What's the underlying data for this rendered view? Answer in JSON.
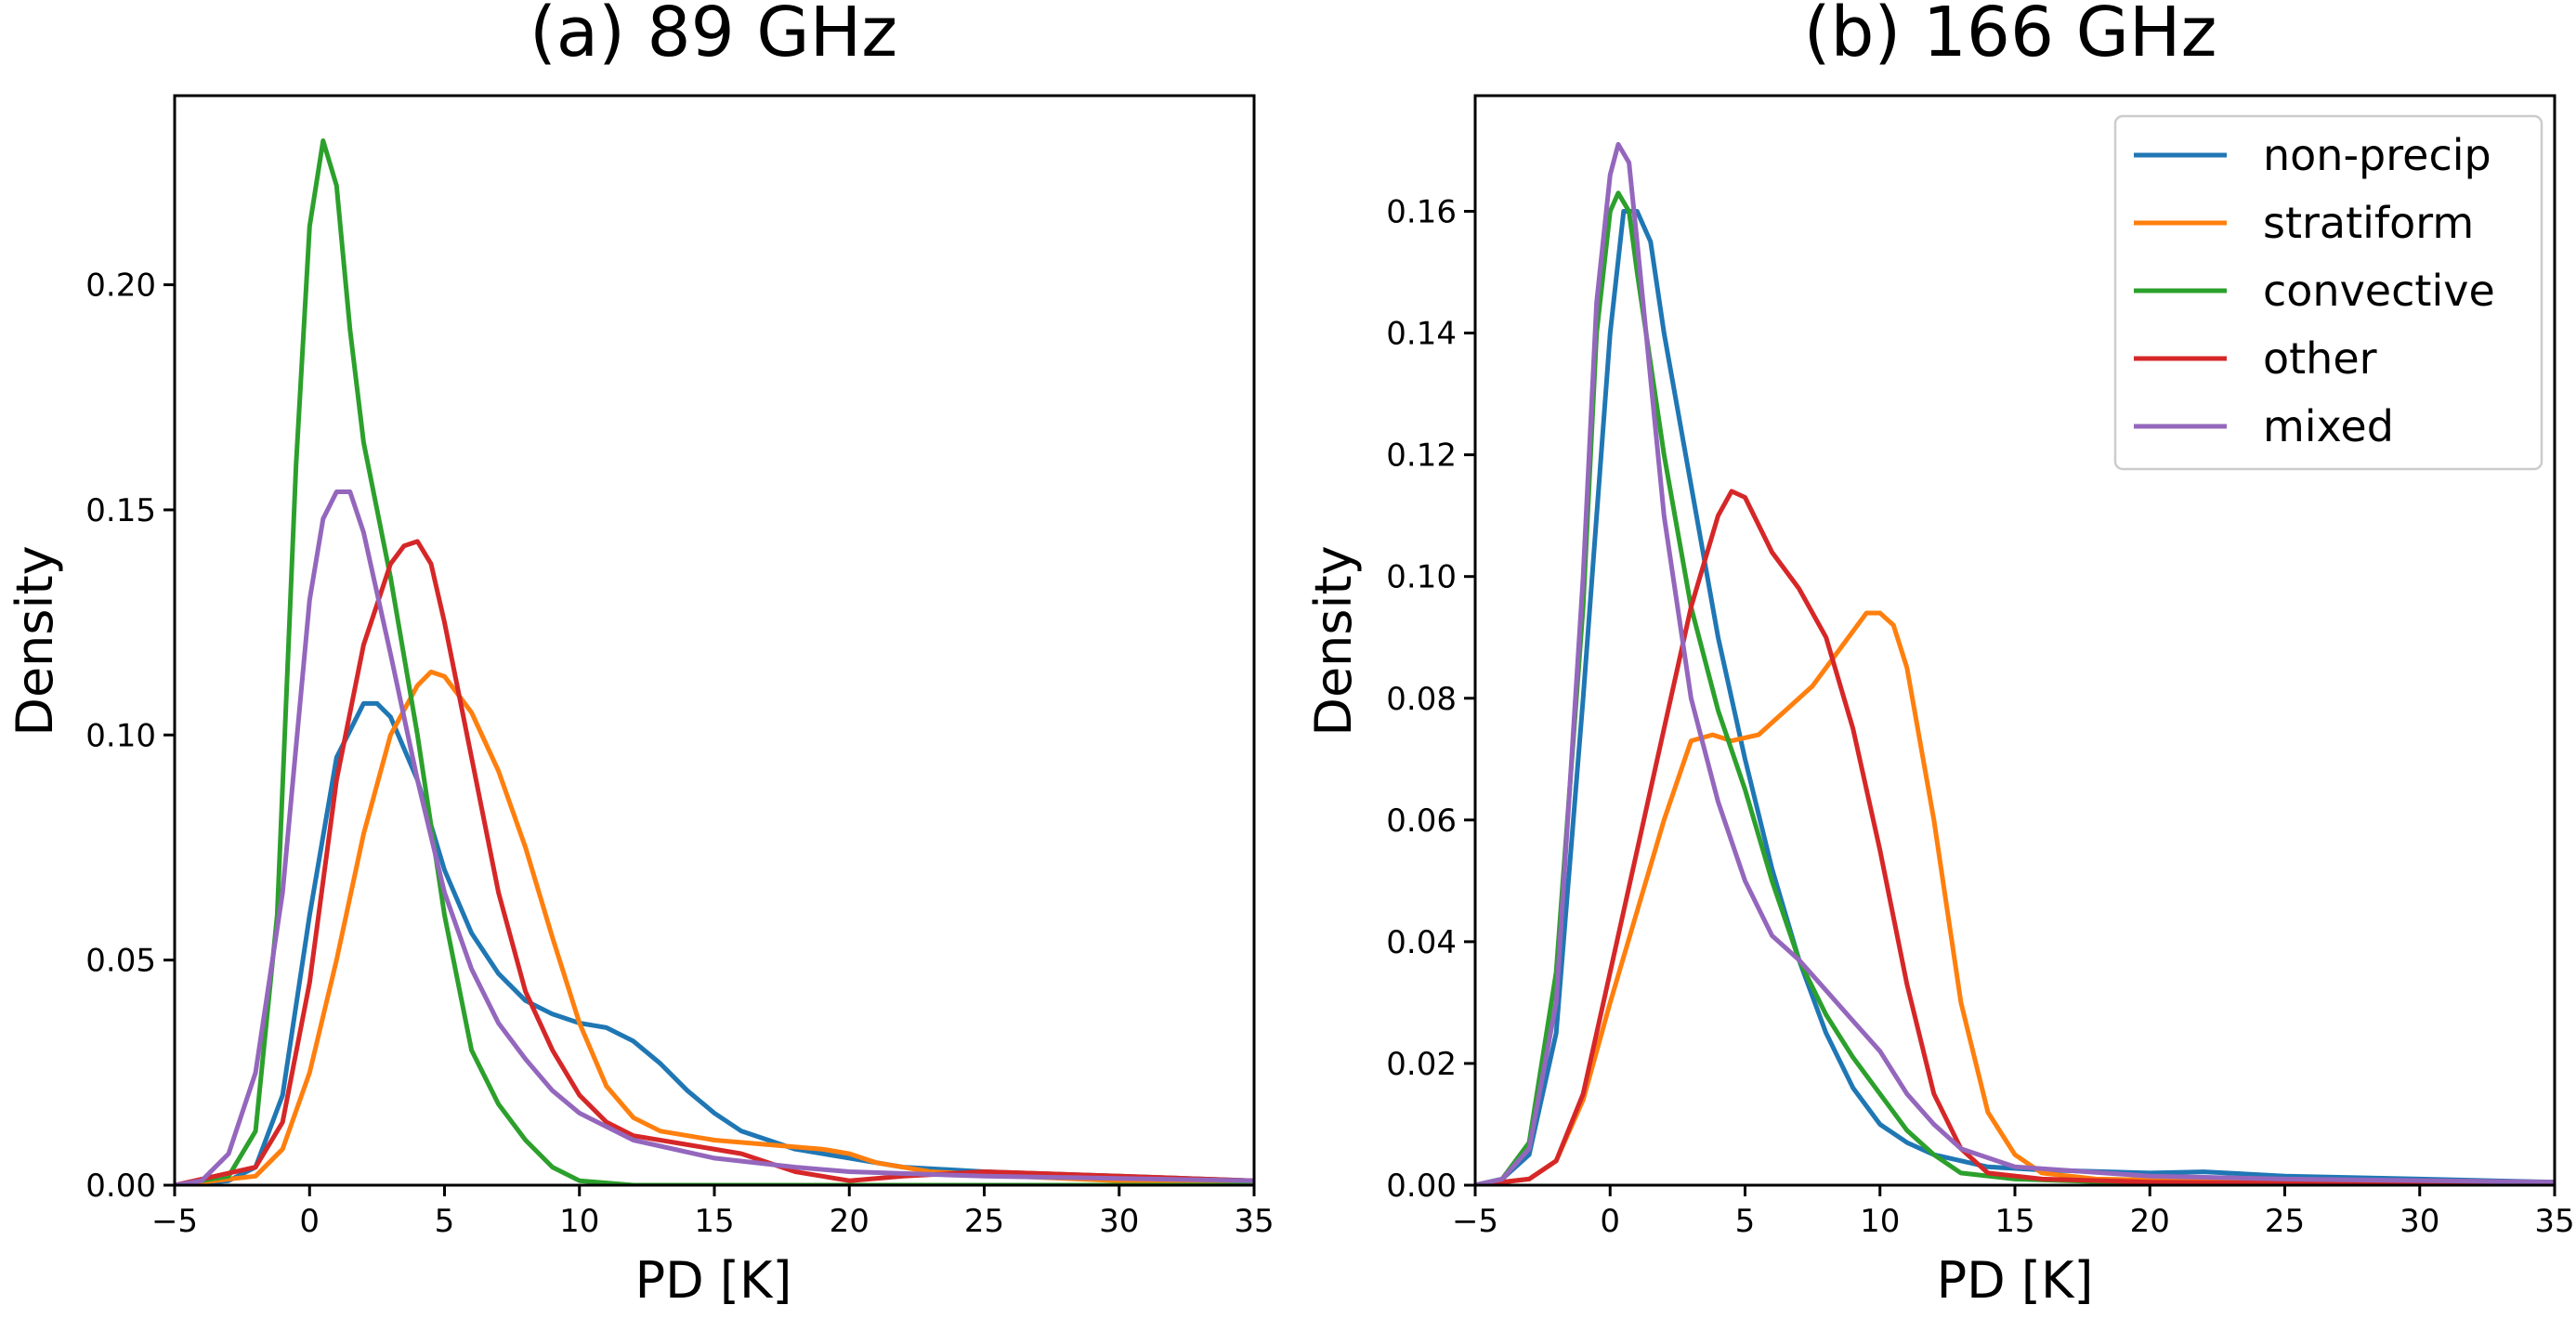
{
  "chart_data": [
    {
      "type": "line",
      "title": "(a) 89 GHz",
      "xlabel": "PD [K]",
      "ylabel": "Density",
      "xlim": [
        -5,
        35
      ],
      "ylim": [
        0,
        0.242
      ],
      "xticks": [
        -5,
        0,
        5,
        10,
        15,
        20,
        25,
        30,
        35
      ],
      "xtick_labels": [
        "−5",
        "0",
        "5",
        "10",
        "15",
        "20",
        "25",
        "30",
        "35"
      ],
      "yticks": [
        0,
        0.05,
        0.1,
        0.15,
        0.2
      ],
      "ytick_labels": [
        "0.00",
        "0.05",
        "0.10",
        "0.15",
        "0.20"
      ],
      "legend": false,
      "series": [
        {
          "name": "non-precip",
          "color": "#1f77b4",
          "points": [
            [
              -5,
              0
            ],
            [
              -3,
              0.001
            ],
            [
              -2,
              0.004
            ],
            [
              -1,
              0.02
            ],
            [
              0,
              0.06
            ],
            [
              1,
              0.095
            ],
            [
              2,
              0.107
            ],
            [
              2.5,
              0.107
            ],
            [
              3,
              0.104
            ],
            [
              4,
              0.09
            ],
            [
              5,
              0.07
            ],
            [
              6,
              0.056
            ],
            [
              7,
              0.047
            ],
            [
              8,
              0.041
            ],
            [
              9,
              0.038
            ],
            [
              10,
              0.036
            ],
            [
              11,
              0.035
            ],
            [
              12,
              0.032
            ],
            [
              13,
              0.027
            ],
            [
              14,
              0.021
            ],
            [
              15,
              0.016
            ],
            [
              16,
              0.012
            ],
            [
              18,
              0.008
            ],
            [
              20,
              0.006
            ],
            [
              22,
              0.004
            ],
            [
              25,
              0.003
            ],
            [
              30,
              0.002
            ],
            [
              35,
              0.001
            ]
          ]
        },
        {
          "name": "stratiform",
          "color": "#ff7f0e",
          "points": [
            [
              -5,
              0
            ],
            [
              -2,
              0.002
            ],
            [
              -1,
              0.008
            ],
            [
              0,
              0.025
            ],
            [
              1,
              0.05
            ],
            [
              2,
              0.078
            ],
            [
              3,
              0.1
            ],
            [
              4,
              0.111
            ],
            [
              4.5,
              0.114
            ],
            [
              5,
              0.113
            ],
            [
              6,
              0.105
            ],
            [
              7,
              0.092
            ],
            [
              8,
              0.075
            ],
            [
              9,
              0.055
            ],
            [
              10,
              0.036
            ],
            [
              11,
              0.022
            ],
            [
              12,
              0.015
            ],
            [
              13,
              0.012
            ],
            [
              15,
              0.01
            ],
            [
              17,
              0.009
            ],
            [
              19,
              0.008
            ],
            [
              20,
              0.007
            ],
            [
              21,
              0.005
            ],
            [
              23,
              0.003
            ],
            [
              26,
              0.002
            ],
            [
              30,
              0.001
            ],
            [
              35,
              0.0005
            ]
          ]
        },
        {
          "name": "convective",
          "color": "#2ca02c",
          "points": [
            [
              -5,
              0
            ],
            [
              -3,
              0.002
            ],
            [
              -2,
              0.012
            ],
            [
              -1.2,
              0.06
            ],
            [
              -0.5,
              0.16
            ],
            [
              0,
              0.213
            ],
            [
              0.5,
              0.232
            ],
            [
              1,
              0.222
            ],
            [
              1.5,
              0.19
            ],
            [
              2,
              0.165
            ],
            [
              3,
              0.135
            ],
            [
              4,
              0.1
            ],
            [
              5,
              0.06
            ],
            [
              6,
              0.03
            ],
            [
              7,
              0.018
            ],
            [
              8,
              0.01
            ],
            [
              9,
              0.004
            ],
            [
              10,
              0.001
            ],
            [
              12,
              0
            ],
            [
              35,
              0
            ]
          ]
        },
        {
          "name": "other",
          "color": "#d62728",
          "points": [
            [
              -5,
              0
            ],
            [
              -2,
              0.004
            ],
            [
              -1,
              0.014
            ],
            [
              0,
              0.045
            ],
            [
              1,
              0.09
            ],
            [
              2,
              0.12
            ],
            [
              3,
              0.138
            ],
            [
              3.5,
              0.142
            ],
            [
              4,
              0.143
            ],
            [
              4.5,
              0.138
            ],
            [
              5,
              0.125
            ],
            [
              6,
              0.095
            ],
            [
              7,
              0.065
            ],
            [
              8,
              0.043
            ],
            [
              9,
              0.03
            ],
            [
              10,
              0.02
            ],
            [
              11,
              0.014
            ],
            [
              12,
              0.011
            ],
            [
              14,
              0.009
            ],
            [
              16,
              0.007
            ],
            [
              18,
              0.003
            ],
            [
              20,
              0.001
            ],
            [
              22,
              0.002
            ],
            [
              25,
              0.003
            ],
            [
              30,
              0.002
            ],
            [
              35,
              0.001
            ]
          ]
        },
        {
          "name": "mixed",
          "color": "#9467bd",
          "points": [
            [
              -5,
              0
            ],
            [
              -4,
              0.001
            ],
            [
              -3,
              0.007
            ],
            [
              -2,
              0.025
            ],
            [
              -1,
              0.065
            ],
            [
              0,
              0.13
            ],
            [
              0.5,
              0.148
            ],
            [
              1,
              0.154
            ],
            [
              1.5,
              0.154
            ],
            [
              2,
              0.145
            ],
            [
              3,
              0.118
            ],
            [
              4,
              0.09
            ],
            [
              5,
              0.065
            ],
            [
              6,
              0.048
            ],
            [
              7,
              0.036
            ],
            [
              8,
              0.028
            ],
            [
              9,
              0.021
            ],
            [
              10,
              0.016
            ],
            [
              12,
              0.01
            ],
            [
              15,
              0.006
            ],
            [
              18,
              0.004
            ],
            [
              20,
              0.003
            ],
            [
              25,
              0.002
            ],
            [
              30,
              0.0015
            ],
            [
              35,
              0.001
            ]
          ]
        }
      ]
    },
    {
      "type": "line",
      "title": "(b) 166 GHz",
      "xlabel": "PD [K]",
      "ylabel": "Density",
      "xlim": [
        -5,
        35
      ],
      "ylim": [
        0,
        0.179
      ],
      "xticks": [
        -5,
        0,
        5,
        10,
        15,
        20,
        25,
        30,
        35
      ],
      "xtick_labels": [
        "−5",
        "0",
        "5",
        "10",
        "15",
        "20",
        "25",
        "30",
        "35"
      ],
      "yticks": [
        0,
        0.02,
        0.04,
        0.06,
        0.08,
        0.1,
        0.12,
        0.14,
        0.16
      ],
      "ytick_labels": [
        "0.00",
        "0.02",
        "0.04",
        "0.06",
        "0.08",
        "0.10",
        "0.12",
        "0.14",
        "0.16"
      ],
      "legend": true,
      "legend_position": "top-right",
      "series": [
        {
          "name": "non-precip",
          "color": "#1f77b4",
          "points": [
            [
              -5,
              0
            ],
            [
              -4,
              0.001
            ],
            [
              -3,
              0.005
            ],
            [
              -2,
              0.025
            ],
            [
              -1,
              0.08
            ],
            [
              0,
              0.14
            ],
            [
              0.5,
              0.16
            ],
            [
              1,
              0.16
            ],
            [
              1.5,
              0.155
            ],
            [
              2,
              0.14
            ],
            [
              3,
              0.115
            ],
            [
              4,
              0.09
            ],
            [
              5,
              0.07
            ],
            [
              6,
              0.052
            ],
            [
              7,
              0.037
            ],
            [
              8,
              0.025
            ],
            [
              9,
              0.016
            ],
            [
              10,
              0.01
            ],
            [
              11,
              0.007
            ],
            [
              12,
              0.005
            ],
            [
              14,
              0.003
            ],
            [
              16,
              0.0025
            ],
            [
              20,
              0.002
            ],
            [
              22,
              0.0022
            ],
            [
              25,
              0.0015
            ],
            [
              30,
              0.001
            ],
            [
              35,
              0.0005
            ]
          ]
        },
        {
          "name": "stratiform",
          "color": "#ff7f0e",
          "points": [
            [
              -5,
              0
            ],
            [
              -3,
              0.001
            ],
            [
              -2,
              0.004
            ],
            [
              -1,
              0.014
            ],
            [
              0,
              0.03
            ],
            [
              1,
              0.045
            ],
            [
              2,
              0.06
            ],
            [
              3,
              0.073
            ],
            [
              3.8,
              0.074
            ],
            [
              4.5,
              0.073
            ],
            [
              5.5,
              0.074
            ],
            [
              6.5,
              0.078
            ],
            [
              7.5,
              0.082
            ],
            [
              8.5,
              0.088
            ],
            [
              9.5,
              0.094
            ],
            [
              10,
              0.094
            ],
            [
              10.5,
              0.092
            ],
            [
              11,
              0.085
            ],
            [
              12,
              0.06
            ],
            [
              13,
              0.03
            ],
            [
              14,
              0.012
            ],
            [
              15,
              0.005
            ],
            [
              16,
              0.002
            ],
            [
              18,
              0.001
            ],
            [
              25,
              0.0005
            ],
            [
              35,
              0
            ]
          ]
        },
        {
          "name": "convective",
          "color": "#2ca02c",
          "points": [
            [
              -5,
              0
            ],
            [
              -4,
              0.001
            ],
            [
              -3,
              0.007
            ],
            [
              -2,
              0.035
            ],
            [
              -1,
              0.095
            ],
            [
              -0.5,
              0.14
            ],
            [
              0,
              0.16
            ],
            [
              0.3,
              0.163
            ],
            [
              0.7,
              0.16
            ],
            [
              1,
              0.15
            ],
            [
              2,
              0.12
            ],
            [
              3,
              0.095
            ],
            [
              4,
              0.078
            ],
            [
              5,
              0.065
            ],
            [
              6,
              0.05
            ],
            [
              7,
              0.037
            ],
            [
              8,
              0.028
            ],
            [
              9,
              0.021
            ],
            [
              10,
              0.015
            ],
            [
              11,
              0.009
            ],
            [
              12,
              0.005
            ],
            [
              13,
              0.002
            ],
            [
              15,
              0.001
            ],
            [
              20,
              0.0003
            ],
            [
              35,
              0
            ]
          ]
        },
        {
          "name": "other",
          "color": "#d62728",
          "points": [
            [
              -5,
              0
            ],
            [
              -3,
              0.001
            ],
            [
              -2,
              0.004
            ],
            [
              -1,
              0.015
            ],
            [
              0,
              0.035
            ],
            [
              1,
              0.055
            ],
            [
              2,
              0.075
            ],
            [
              3,
              0.095
            ],
            [
              4,
              0.11
            ],
            [
              4.5,
              0.114
            ],
            [
              5,
              0.113
            ],
            [
              6,
              0.104
            ],
            [
              7,
              0.098
            ],
            [
              8,
              0.09
            ],
            [
              9,
              0.075
            ],
            [
              10,
              0.055
            ],
            [
              11,
              0.033
            ],
            [
              12,
              0.015
            ],
            [
              13,
              0.006
            ],
            [
              14,
              0.002
            ],
            [
              16,
              0.001
            ],
            [
              20,
              0.0005
            ],
            [
              35,
              0
            ]
          ]
        },
        {
          "name": "mixed",
          "color": "#9467bd",
          "points": [
            [
              -5,
              0
            ],
            [
              -4,
              0.001
            ],
            [
              -3,
              0.006
            ],
            [
              -2,
              0.03
            ],
            [
              -1,
              0.1
            ],
            [
              -0.5,
              0.145
            ],
            [
              0,
              0.166
            ],
            [
              0.3,
              0.171
            ],
            [
              0.7,
              0.168
            ],
            [
              1,
              0.155
            ],
            [
              2,
              0.11
            ],
            [
              3,
              0.08
            ],
            [
              4,
              0.063
            ],
            [
              5,
              0.05
            ],
            [
              6,
              0.041
            ],
            [
              7,
              0.037
            ],
            [
              8,
              0.032
            ],
            [
              9,
              0.027
            ],
            [
              10,
              0.022
            ],
            [
              11,
              0.015
            ],
            [
              12,
              0.01
            ],
            [
              13,
              0.006
            ],
            [
              15,
              0.003
            ],
            [
              20,
              0.0015
            ],
            [
              25,
              0.001
            ],
            [
              35,
              0.0005
            ]
          ]
        }
      ]
    }
  ]
}
